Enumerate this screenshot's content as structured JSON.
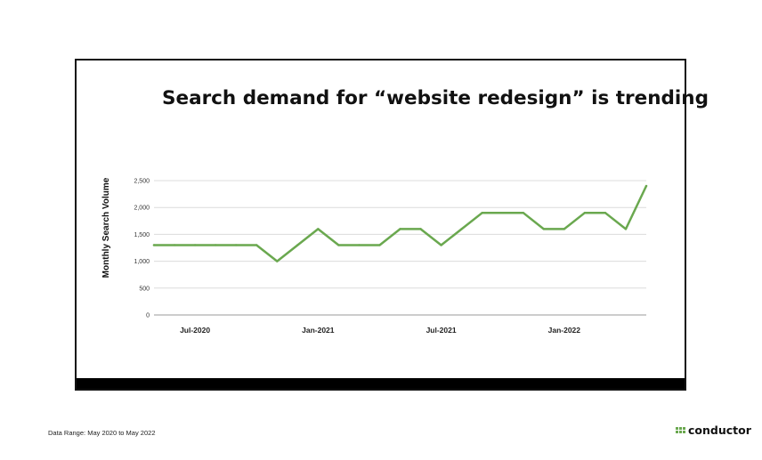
{
  "chart_data": {
    "type": "line",
    "title": "Search demand for “website redesign” is trending",
    "xlabel": "",
    "ylabel": "Monthly Search Volume",
    "x": [
      "May-2020",
      "Jun-2020",
      "Jul-2020",
      "Aug-2020",
      "Sep-2020",
      "Oct-2020",
      "Nov-2020",
      "Dec-2020",
      "Jan-2021",
      "Feb-2021",
      "Mar-2021",
      "Apr-2021",
      "May-2021",
      "Jun-2021",
      "Jul-2021",
      "Aug-2021",
      "Sep-2021",
      "Oct-2021",
      "Nov-2021",
      "Dec-2021",
      "Jan-2022",
      "Feb-2022",
      "Mar-2022",
      "Apr-2022",
      "May-2022"
    ],
    "x_tick_labels": [
      "Jul-2020",
      "Jan-2021",
      "Jul-2021",
      "Jan-2022"
    ],
    "series": [
      {
        "values": [
          1300,
          1300,
          1300,
          1300,
          1300,
          1300,
          1000,
          1300,
          1600,
          1300,
          1300,
          1300,
          1600,
          1600,
          1300,
          1600,
          1900,
          1900,
          1900,
          1600,
          1600,
          1900,
          1900,
          1600,
          2400
        ]
      }
    ],
    "y_ticks": [
      "0",
      "500",
      "1,000",
      "1,500",
      "2,000",
      "2,500"
    ],
    "ylim": [
      0,
      2500
    ],
    "grid": true,
    "legend": "none",
    "line_color": "#6aa84f",
    "grid_color": "#dcdcdc"
  },
  "footer": {
    "note": "Data Range: May 2020 to May 2022",
    "brand": "conductor",
    "brand_color": "#6aa84f"
  }
}
